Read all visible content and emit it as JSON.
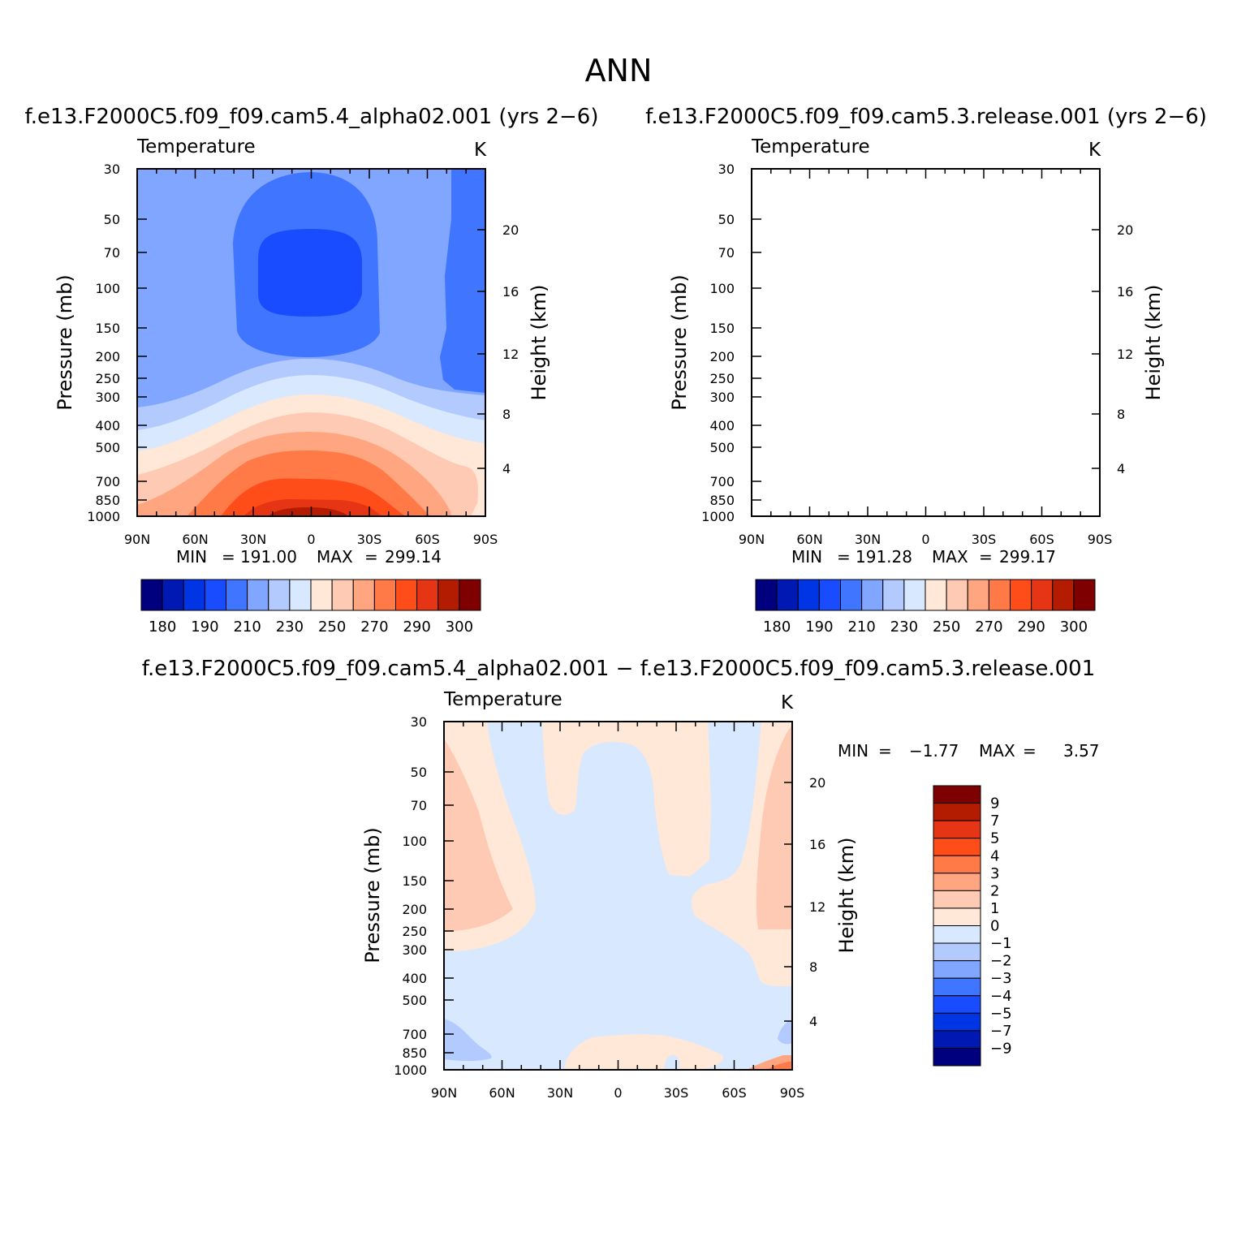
{
  "figure": {
    "title": "ANN"
  },
  "chart_data": [
    {
      "type": "heatmap",
      "subtitle": "f.e13.F2000C5.f09_f09.cam5.4_alpha02.001 (yrs 2−6)",
      "variable": "Temperature",
      "units": "K",
      "xlabel": "",
      "ylabel": "Pressure (mb)",
      "ylabel_right": "Height (km)",
      "x_ticks": [
        "90N",
        "60N",
        "30N",
        "0",
        "30S",
        "60S",
        "90S"
      ],
      "y_ticks": [
        "30",
        "50",
        "70",
        "100",
        "150",
        "200",
        "250",
        "300",
        "400",
        "500",
        "700",
        "850",
        "1000"
      ],
      "y_ticks_right": [
        "20",
        "16",
        "12",
        "8",
        "4"
      ],
      "ylim": [
        1000,
        30
      ],
      "y_scale": "log",
      "stats": {
        "min_label": "MIN",
        "min_value": "191.00",
        "max_label": "MAX",
        "max_value": "299.14"
      },
      "colorbar_levels": [
        "180",
        "190",
        "210",
        "230",
        "250",
        "270",
        "290",
        "300"
      ],
      "colorbar_orientation": "horizontal"
    },
    {
      "type": "heatmap",
      "subtitle": "f.e13.F2000C5.f09_f09.cam5.3.release.001 (yrs 2−6)",
      "variable": "Temperature",
      "units": "K",
      "xlabel": "",
      "ylabel": "Pressure (mb)",
      "ylabel_right": "Height (km)",
      "x_ticks": [
        "90N",
        "60N",
        "30N",
        "0",
        "30S",
        "60S",
        "90S"
      ],
      "y_ticks": [
        "30",
        "50",
        "70",
        "100",
        "150",
        "200",
        "250",
        "300",
        "400",
        "500",
        "700",
        "850",
        "1000"
      ],
      "y_ticks_right": [
        "20",
        "16",
        "12",
        "8",
        "4"
      ],
      "ylim": [
        1000,
        30
      ],
      "y_scale": "log",
      "stats": {
        "min_label": "MIN",
        "min_value": "191.28",
        "max_label": "MAX",
        "max_value": "299.17"
      },
      "colorbar_levels": [
        "180",
        "190",
        "210",
        "230",
        "250",
        "270",
        "290",
        "300"
      ],
      "colorbar_orientation": "horizontal"
    },
    {
      "type": "heatmap",
      "subtitle": "f.e13.F2000C5.f09_f09.cam5.4_alpha02.001 − f.e13.F2000C5.f09_f09.cam5.3.release.001",
      "variable": "Temperature",
      "units": "K",
      "xlabel": "",
      "ylabel": "Pressure (mb)",
      "ylabel_right": "Height (km)",
      "x_ticks": [
        "90N",
        "60N",
        "30N",
        "0",
        "30S",
        "60S",
        "90S"
      ],
      "y_ticks": [
        "30",
        "50",
        "70",
        "100",
        "150",
        "200",
        "250",
        "300",
        "400",
        "500",
        "700",
        "850",
        "1000"
      ],
      "y_ticks_right": [
        "20",
        "16",
        "12",
        "8",
        "4"
      ],
      "ylim": [
        1000,
        30
      ],
      "y_scale": "log",
      "stats": {
        "min_label": "MIN",
        "min_value": "−1.77",
        "max_label": "MAX",
        "max_value": "3.57"
      },
      "colorbar_levels": [
        "9",
        "7",
        "5",
        "4",
        "3",
        "2",
        "1",
        "0",
        "−1",
        "−2",
        "−3",
        "−4",
        "−5",
        "−7",
        "−9"
      ],
      "colorbar_orientation": "vertical"
    }
  ],
  "palette": {
    "abs": [
      "#00007f",
      "#0019b3",
      "#0035e6",
      "#1a4cff",
      "#4075ff",
      "#80a6ff",
      "#b3caff",
      "#d7e8ff",
      "#ffe8d7",
      "#ffcab3",
      "#ffa680",
      "#ff7a47",
      "#ff4d1a",
      "#e63514",
      "#b31c00",
      "#7f0000"
    ],
    "diff": [
      "#7f0000",
      "#b31c00",
      "#e63514",
      "#ff4d1a",
      "#ff7a47",
      "#ffa680",
      "#ffcab3",
      "#ffe8d7",
      "#d7e8ff",
      "#b3caff",
      "#80a6ff",
      "#4075ff",
      "#1a4cff",
      "#0035e6",
      "#0019b3",
      "#00007f"
    ]
  }
}
